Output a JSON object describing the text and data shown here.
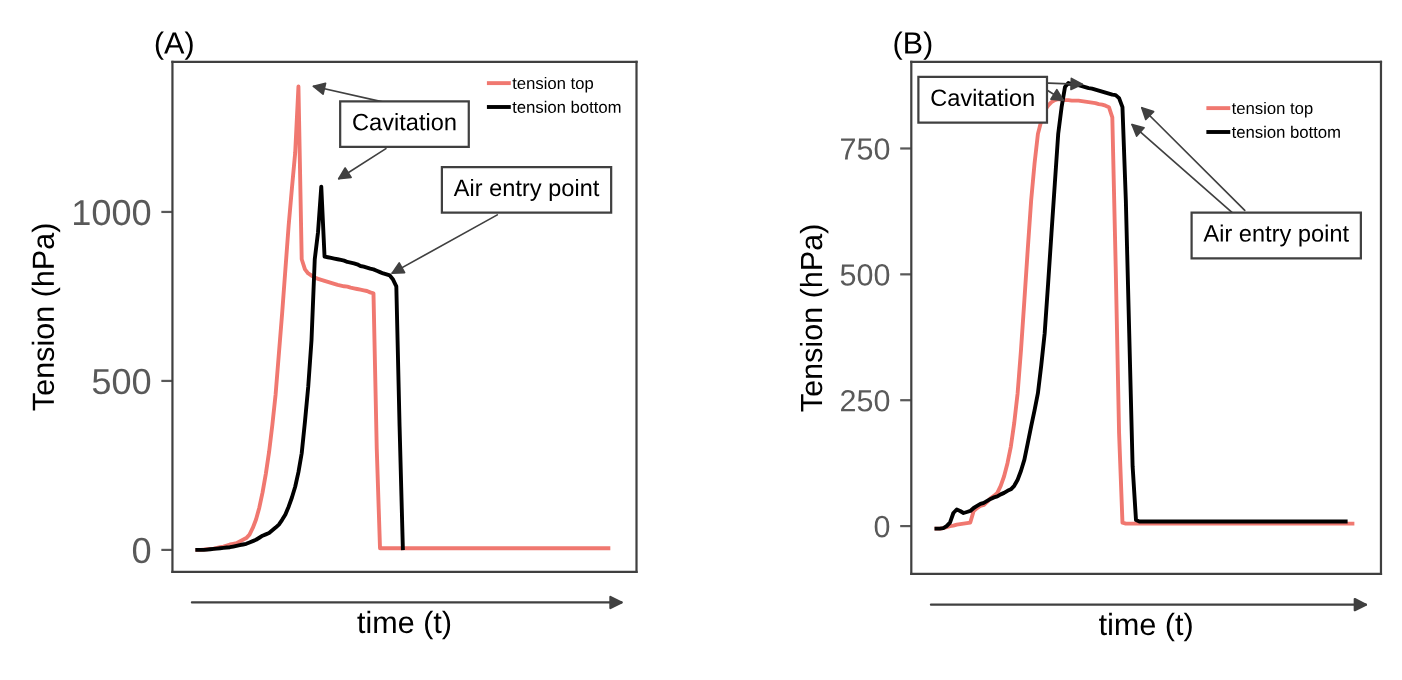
{
  "chart_data": [
    {
      "type": "line",
      "title": "(A)",
      "xlabel": "time (t)",
      "ylabel": "Tension (hPa)",
      "categories": [
        null,
        null,
        null,
        null,
        null,
        null,
        null,
        null,
        null,
        null,
        null,
        null,
        null,
        null,
        null,
        null,
        null,
        null,
        null,
        null,
        null,
        null,
        null,
        null,
        null,
        null,
        null,
        null,
        null,
        null,
        null,
        null,
        null,
        null,
        null,
        null,
        null,
        null,
        null,
        null,
        null,
        null,
        null,
        null,
        null,
        null,
        null,
        null,
        null,
        null,
        null,
        null,
        null,
        null,
        null,
        null,
        null,
        null,
        null,
        null,
        null,
        null,
        null,
        null,
        null,
        null,
        null,
        null,
        null,
        null,
        null,
        null,
        null,
        null,
        null,
        null,
        null,
        null,
        null,
        null,
        null,
        null,
        null,
        null,
        null,
        null,
        null,
        null,
        null,
        null,
        null,
        null,
        null,
        null,
        null,
        null,
        null,
        null,
        null,
        null,
        null,
        null,
        null,
        null,
        null,
        null,
        null,
        null,
        null,
        null,
        null,
        null,
        null,
        null,
        null,
        null,
        null,
        null,
        null,
        null,
        null,
        null,
        null,
        null,
        null,
        null,
        null
      ],
      "series": [
        {
          "name": "tension top",
          "color": "#f07870",
          "values": [
            0,
            0,
            1,
            2,
            3,
            4,
            6,
            8,
            10,
            13,
            16,
            18,
            20,
            25,
            30,
            35,
            45,
            65,
            90,
            125,
            170,
            225,
            290,
            370,
            460,
            580,
            700,
            830,
            960,
            1070,
            1175,
            1371,
            860,
            830,
            818,
            812,
            806,
            802,
            799,
            796,
            793,
            790,
            787,
            784,
            782,
            780,
            779,
            776,
            774,
            772,
            770,
            768,
            766,
            762,
            759,
            300,
            5,
            5,
            5,
            5,
            5,
            5,
            5,
            5,
            5,
            5,
            5,
            5,
            5,
            5,
            5,
            5,
            5,
            5,
            5,
            5,
            5,
            5,
            5,
            5,
            5,
            5,
            5,
            5,
            5,
            5,
            5,
            5,
            5,
            5,
            5,
            5,
            5,
            5,
            5,
            5,
            5,
            5,
            5,
            5,
            5,
            5,
            5,
            5,
            5,
            5,
            5,
            5,
            5,
            5,
            5,
            5,
            5,
            5,
            5,
            5,
            5,
            5,
            5,
            5,
            5,
            5,
            5,
            5,
            5,
            5,
            5
          ]
        },
        {
          "name": "tension bottom",
          "color": "#000000",
          "values": [
            0,
            0,
            0,
            1,
            2,
            3,
            4,
            5,
            6,
            7,
            8,
            10,
            12,
            14,
            16,
            18,
            22,
            26,
            30,
            36,
            42,
            46,
            50,
            58,
            66,
            75,
            89,
            105,
            128,
            155,
            187,
            230,
            286,
            380,
            483,
            620,
            860,
            940,
            1075,
            868,
            866,
            864,
            862,
            860,
            858,
            856,
            852,
            850,
            848,
            845,
            840,
            838,
            835,
            832,
            830,
            826,
            822,
            818,
            815,
            812,
            800,
            780,
            365,
            5,
            null,
            null,
            null,
            null,
            null,
            null,
            null,
            null,
            null,
            null,
            null,
            null,
            null,
            null,
            null,
            null,
            null,
            null,
            null,
            null,
            null,
            null,
            null,
            null,
            null,
            null,
            null,
            null,
            null,
            null,
            null,
            null,
            null,
            null,
            null,
            null,
            null,
            null,
            null,
            null,
            null,
            null,
            null,
            null,
            null,
            null,
            null,
            null,
            null,
            null,
            null,
            null,
            null,
            null,
            null,
            null,
            null,
            null,
            null,
            null,
            null,
            null,
            null
          ]
        }
      ],
      "ylim": [
        -65,
        1444
      ],
      "yticks": [
        0,
        500,
        1000
      ],
      "grid": false,
      "legend": "top right",
      "tick_labels": "y",
      "annotations": [
        "Cavitation",
        "Air entry point"
      ]
    },
    {
      "type": "line",
      "title": "(B)",
      "xlabel": "time (t)",
      "ylabel": "Tension (hPa)",
      "categories": [
        null,
        null,
        null,
        null,
        null,
        null,
        null,
        null,
        null,
        null,
        null,
        null,
        null,
        null,
        null,
        null,
        null,
        null,
        null,
        null,
        null,
        null,
        null,
        null,
        null,
        null,
        null,
        null,
        null,
        null,
        null,
        null,
        null,
        null,
        null,
        null,
        null,
        null,
        null,
        null,
        null,
        null,
        null,
        null,
        null,
        null,
        null,
        null,
        null,
        null,
        null,
        null,
        null,
        null,
        null,
        null,
        null,
        null,
        null,
        null,
        null,
        null,
        null,
        null,
        null,
        null,
        null,
        null,
        null,
        null,
        null,
        null,
        null,
        null,
        null,
        null,
        null,
        null,
        null,
        null,
        null,
        null,
        null,
        null,
        null,
        null,
        null,
        null,
        null,
        null,
        null,
        null,
        null,
        null,
        null,
        null,
        null,
        null,
        null,
        null,
        null,
        null,
        null,
        null,
        null,
        null,
        null,
        null,
        null,
        null,
        null,
        null,
        null,
        null,
        null,
        null,
        null,
        null,
        null,
        null,
        null,
        null,
        null,
        null
      ],
      "series": [
        {
          "name": "tension top",
          "color": "#f07870",
          "values": [
            -5,
            -5,
            -4,
            -2,
            0,
            1,
            3,
            4,
            5,
            6,
            7,
            30,
            36,
            40,
            42,
            48,
            55,
            60,
            66,
            80,
            99,
            125,
            158,
            205,
            264,
            350,
            449,
            550,
            647,
            720,
            779,
            805,
            825,
            835,
            842,
            846,
            848,
            847,
            846,
            846,
            845,
            845,
            845,
            844,
            843,
            842,
            841,
            840,
            838,
            837,
            835,
            832,
            812,
            515,
            185,
            7,
            5,
            5,
            5,
            5,
            5,
            5,
            5,
            5,
            5,
            5,
            5,
            5,
            5,
            5,
            5,
            5,
            5,
            5,
            5,
            5,
            5,
            5,
            5,
            5,
            5,
            5,
            5,
            5,
            5,
            5,
            5,
            5,
            5,
            5,
            5,
            5,
            5,
            5,
            5,
            5,
            5,
            5,
            5,
            5,
            5,
            5,
            5,
            5,
            5,
            5,
            5,
            5,
            5,
            5,
            5,
            5,
            5,
            5,
            5,
            5,
            5,
            5,
            5,
            5,
            5,
            5,
            5,
            5
          ]
        },
        {
          "name": "tension bottom",
          "color": "#000000",
          "values": [
            -5,
            -5,
            -4,
            0,
            7,
            26,
            33,
            30,
            26,
            28,
            30,
            36,
            40,
            44,
            46,
            50,
            54,
            57,
            59,
            63,
            66,
            70,
            73,
            80,
            92,
            110,
            132,
            165,
            198,
            230,
            264,
            320,
            383,
            480,
            581,
            680,
            779,
            832,
            872,
            880,
            878,
            877,
            876,
            874,
            872,
            870,
            869,
            867,
            865,
            863,
            861,
            859,
            857,
            856,
            850,
            832,
            647,
            383,
            119,
            12,
            9,
            9,
            9,
            9,
            9,
            9,
            9,
            9,
            9,
            9,
            9,
            9,
            9,
            9,
            9,
            9,
            9,
            9,
            9,
            9,
            9,
            9,
            9,
            9,
            9,
            9,
            9,
            9,
            9,
            9,
            9,
            9,
            9,
            9,
            9,
            9,
            9,
            9,
            9,
            9,
            9,
            9,
            9,
            9,
            9,
            9,
            9,
            9,
            9,
            9,
            9,
            9,
            9,
            9,
            9,
            9,
            9,
            9,
            9,
            9,
            9,
            9,
            null,
            null
          ]
        }
      ],
      "ylim": [
        -95,
        922
      ],
      "yticks": [
        0,
        250,
        500,
        750
      ],
      "grid": false,
      "legend": "top right",
      "tick_labels": "y",
      "annotations": [
        "Cavitation",
        "Air entry point"
      ]
    }
  ]
}
